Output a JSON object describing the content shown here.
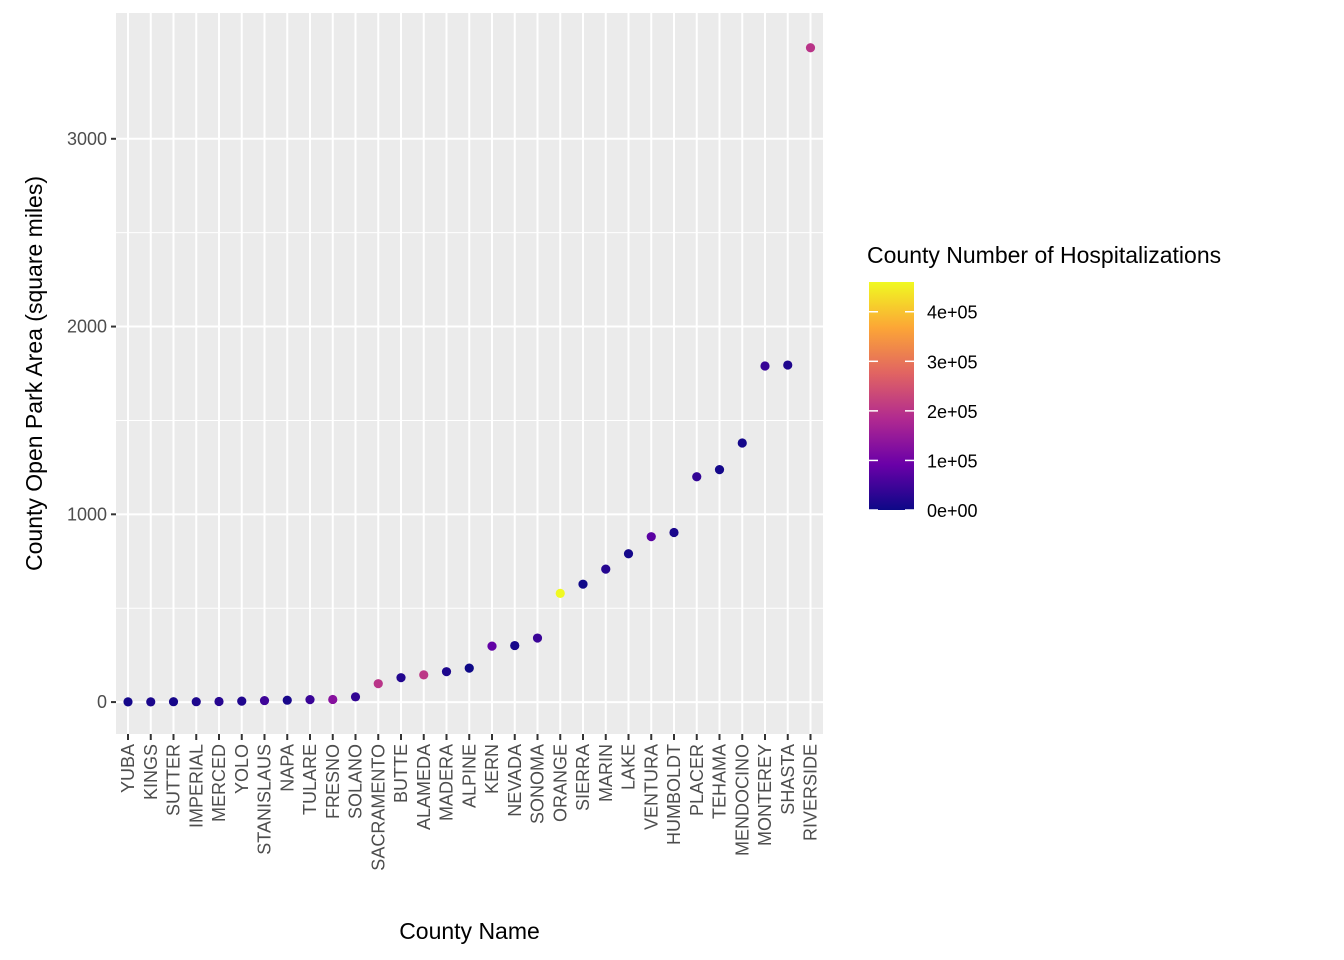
{
  "chart_data": {
    "type": "scatter",
    "xlabel": "County Name",
    "ylabel": "County Open Park Area (square miles)",
    "ylim": [
      -170,
      3670
    ],
    "yticks": [
      0,
      1000,
      2000,
      3000
    ],
    "ytick_labels": [
      "0",
      "1000",
      "2000",
      "3000"
    ],
    "grid": true,
    "categories": [
      "YUBA",
      "KINGS",
      "SUTTER",
      "IMPERIAL",
      "MERCED",
      "YOLO",
      "STANISLAUS",
      "NAPA",
      "TULARE",
      "FRESNO",
      "SOLANO",
      "SACRAMENTO",
      "BUTTE",
      "ALAMEDA",
      "MADERA",
      "ALPINE",
      "KERN",
      "NEVADA",
      "SONOMA",
      "ORANGE",
      "SIERRA",
      "MARIN",
      "LAKE",
      "VENTURA",
      "HUMBOLDT",
      "PLACER",
      "TEHAMA",
      "MENDOCINO",
      "MONTEREY",
      "SHASTA",
      "RIVERSIDE"
    ],
    "values": [
      1,
      1,
      2,
      2,
      3,
      5,
      8,
      10,
      13,
      14,
      28,
      98,
      130,
      145,
      162,
      181,
      298,
      301,
      341,
      579,
      628,
      708,
      790,
      881,
      903,
      1200,
      1238,
      1380,
      1790,
      1795,
      3485
    ],
    "color_values": [
      8000,
      14000,
      9000,
      16000,
      26000,
      19000,
      48000,
      12000,
      44000,
      130000,
      37000,
      200000,
      21000,
      205000,
      16000,
      500,
      84000,
      9000,
      45000,
      460000,
      3000,
      24000,
      7000,
      76000,
      13000,
      38000,
      7000,
      8000,
      42000,
      18000,
      200000
    ],
    "legend": {
      "title": "County Number of Hospitalizations",
      "position": "right",
      "min": 0,
      "max": 460000,
      "ticks": [
        0,
        100000,
        200000,
        300000,
        400000
      ],
      "tick_labels": [
        "0e+00",
        "1e+05",
        "2e+05",
        "3e+05",
        "4e+05"
      ],
      "colormap": [
        "#0d0887",
        "#6a00a8",
        "#b12a90",
        "#e16462",
        "#fca636",
        "#f0f921"
      ]
    },
    "panel_color": "#ebebeb",
    "grid_color": "#ffffff"
  }
}
